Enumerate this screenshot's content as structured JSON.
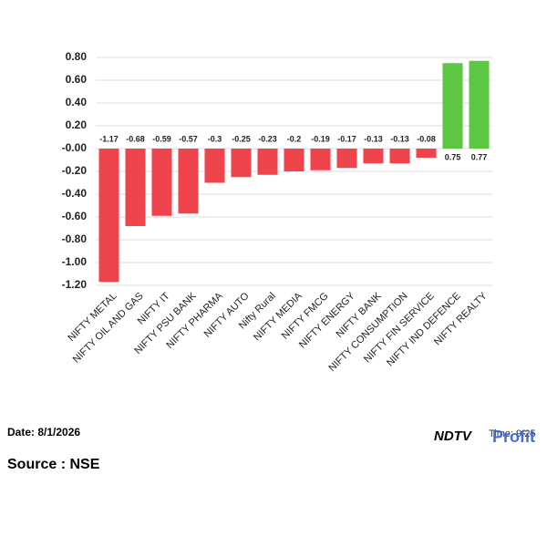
{
  "chart_data": {
    "type": "bar",
    "categories": [
      "NIFTY METAL",
      "NIFTY OIL AND GAS",
      "NIFTY IT",
      "NIFTY PSU BANK",
      "NIFTY PHARMA",
      "NIFTY AUTO",
      "Nifty Rural",
      "NIFTY MEDIA",
      "NIFTY FMCG",
      "NIFTY ENERGY",
      "NIFTY BANK",
      "NIFTY CONSUMPTION",
      "NIFTY FIN SERVICE",
      "NIFTY IND DEFENCE",
      "NIFTY REALTY"
    ],
    "values": [
      -1.17,
      -0.68,
      -0.59,
      -0.57,
      -0.3,
      -0.25,
      -0.23,
      -0.2,
      -0.19,
      -0.17,
      -0.13,
      -0.13,
      -0.08,
      0.75,
      0.77
    ],
    "negative_color": "#f0444c",
    "positive_color": "#5dc743",
    "ylim": [
      -1.2,
      0.8
    ],
    "yticks": [
      {
        "value": 0.8,
        "label": "0.80"
      },
      {
        "value": 0.6,
        "label": "0.60"
      },
      {
        "value": 0.4,
        "label": "0.40"
      },
      {
        "value": 0.2,
        "label": "0.20"
      },
      {
        "value": 0,
        "label": "-0.00"
      },
      {
        "value": -0.2,
        "label": "-0.20"
      },
      {
        "value": -0.4,
        "label": "-0.40"
      },
      {
        "value": -0.6,
        "label": "-0.60"
      },
      {
        "value": -0.8,
        "label": "-0.80"
      },
      {
        "value": -1,
        "label": "-1.00"
      },
      {
        "value": -1.2,
        "label": "-1.20"
      }
    ],
    "grid": true
  },
  "footer": {
    "date": "Date: 8/1/2026",
    "source": "Source : NSE",
    "logo": "NDTV",
    "logo_suffix": "Profit",
    "time": "Time: 9:25"
  }
}
